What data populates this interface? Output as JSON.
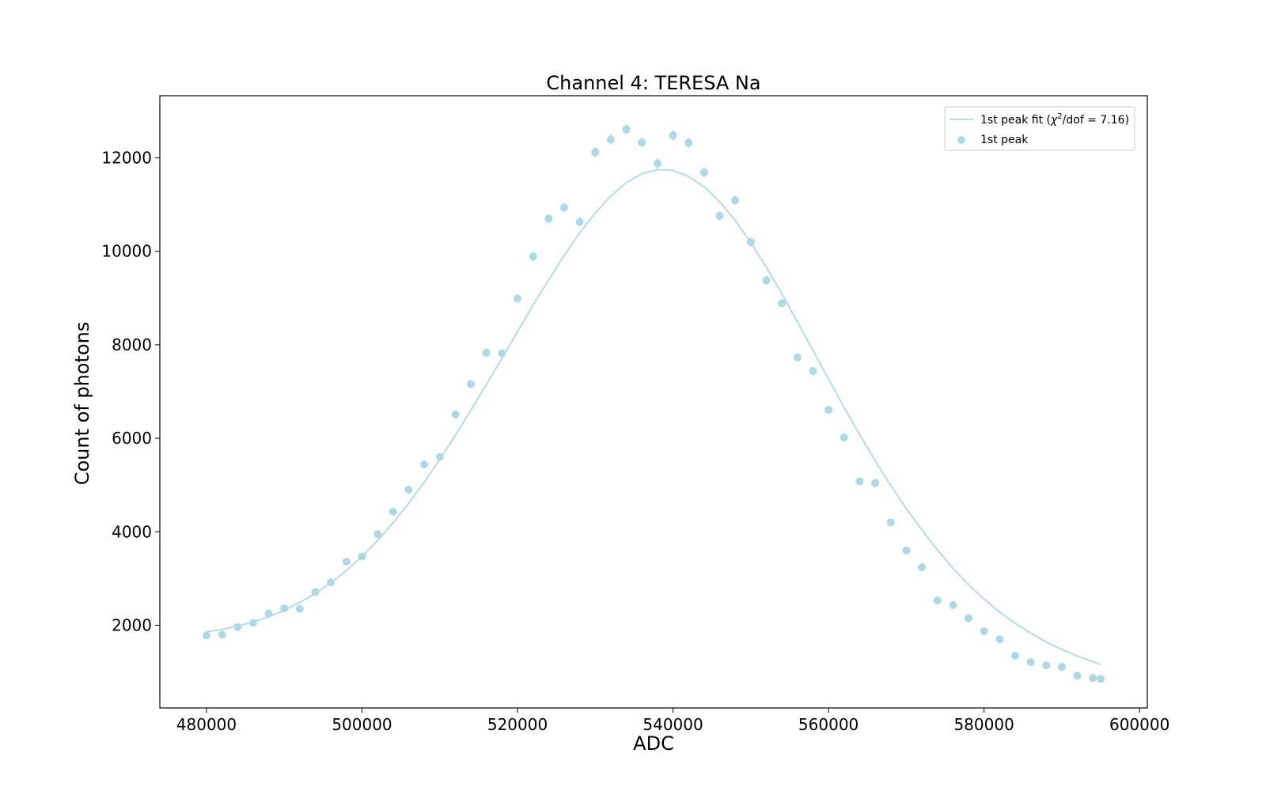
{
  "chart_data": {
    "type": "scatter",
    "title": "Channel 4: TERESA Na",
    "xlabel": "ADC",
    "ylabel": "Count of photons",
    "xlim": [
      474000,
      601000
    ],
    "ylim": [
      230,
      13330
    ],
    "xticks": [
      480000,
      500000,
      520000,
      540000,
      560000,
      580000,
      600000
    ],
    "yticks": [
      2000,
      4000,
      6000,
      8000,
      10000,
      12000
    ],
    "grid": false,
    "legend_position": "top-right",
    "color": "#add8e6",
    "legend": {
      "fit_label_prefix": "1st peak fit (",
      "fit_label_chi": "χ",
      "fit_label_sup": "2",
      "fit_label_suffix": "/dof = 7.16)",
      "points_label": "1st peak"
    },
    "series": [
      {
        "name": "1st peak fit (χ2/dof = 7.16)",
        "kind": "line",
        "x": [
          480000,
          482000,
          484000,
          486000,
          488000,
          490000,
          492000,
          494000,
          496000,
          498000,
          500000,
          502000,
          504000,
          506000,
          508000,
          510000,
          512000,
          514000,
          516000,
          518000,
          520000,
          522000,
          524000,
          526000,
          528000,
          530000,
          532000,
          534000,
          536000,
          538000,
          540000,
          542000,
          544000,
          546000,
          548000,
          550000,
          552000,
          554000,
          556000,
          558000,
          560000,
          562000,
          564000,
          566000,
          568000,
          570000,
          572000,
          574000,
          576000,
          578000,
          580000,
          582000,
          584000,
          586000,
          588000,
          590000,
          592000,
          594000,
          595000
        ],
        "y": [
          1860,
          1910,
          1980,
          2070,
          2180,
          2320,
          2490,
          2680,
          2910,
          3170,
          3470,
          3810,
          4190,
          4610,
          5060,
          5550,
          6060,
          6600,
          7150,
          7710,
          8280,
          8850,
          9390,
          9910,
          10400,
          10820,
          11180,
          11470,
          11660,
          11750,
          11730,
          11600,
          11380,
          11060,
          10660,
          10190,
          9660,
          9090,
          8490,
          7880,
          7270,
          6660,
          6080,
          5520,
          4990,
          4500,
          4040,
          3610,
          3220,
          2870,
          2560,
          2280,
          2040,
          1830,
          1640,
          1480,
          1340,
          1220,
          1160
        ]
      },
      {
        "name": "1st peak",
        "kind": "points",
        "x": [
          480000,
          482000,
          484000,
          486000,
          488000,
          490000,
          492000,
          494000,
          496000,
          498000,
          500000,
          502000,
          504000,
          506000,
          508000,
          510000,
          512000,
          514000,
          516000,
          518000,
          520000,
          522000,
          524000,
          526000,
          528000,
          530000,
          532000,
          534000,
          536000,
          538000,
          540000,
          542000,
          544000,
          546000,
          548000,
          550000,
          552000,
          554000,
          556000,
          558000,
          560000,
          562000,
          564000,
          566000,
          568000,
          570000,
          572000,
          574000,
          576000,
          578000,
          580000,
          582000,
          584000,
          586000,
          588000,
          590000,
          592000,
          594000,
          595000
        ],
        "y": [
          1780,
          1800,
          1960,
          2050,
          2250,
          2360,
          2350,
          2710,
          2920,
          3360,
          3470,
          3950,
          4430,
          4900,
          5440,
          5600,
          6510,
          7160,
          7830,
          7820,
          8990,
          9890,
          10700,
          10940,
          10630,
          12120,
          12390,
          12610,
          12330,
          11880,
          12480,
          12320,
          11690,
          10760,
          11090,
          10200,
          9380,
          8890,
          7730,
          7440,
          6610,
          6020,
          5080,
          5040,
          4200,
          3600,
          3240,
          2530,
          2430,
          2150,
          1870,
          1700,
          1350,
          1210,
          1140,
          1110,
          920,
          870,
          850
        ]
      }
    ]
  }
}
